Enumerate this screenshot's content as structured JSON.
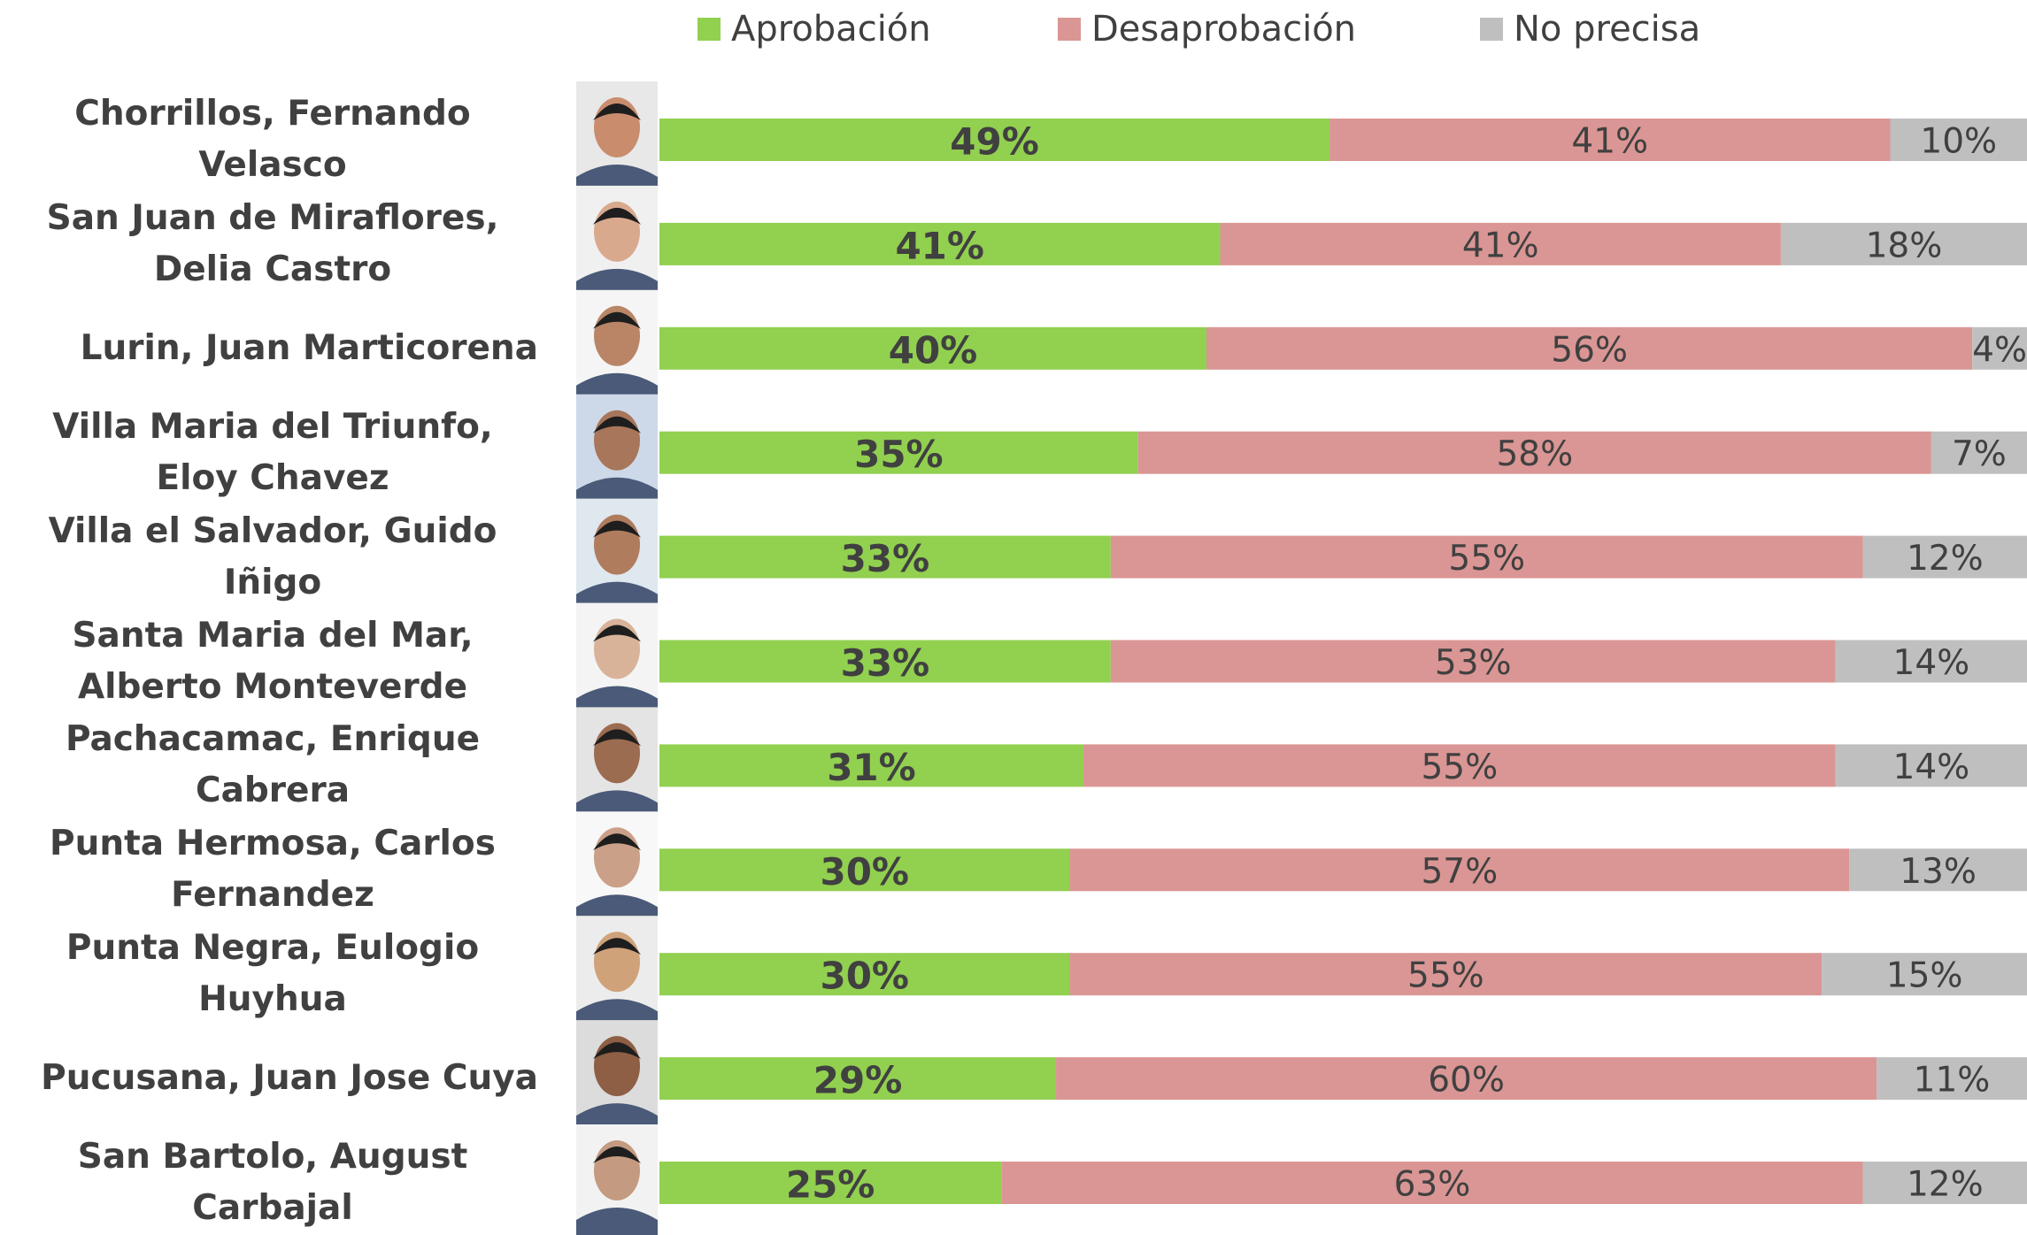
{
  "chart_data": {
    "type": "stacked-bar-horizontal",
    "categories": [
      "Chorrillos, Fernando Velasco",
      "San Juan de Miraflores, Delia Castro",
      "Lurin, Juan Marticorena",
      "Villa Maria del Triunfo, Eloy Chavez",
      "Villa el Salvador, Guido Iñigo",
      "Santa Maria del Mar, Alberto Monteverde",
      "Pachacamac, Enrique Cabrera",
      "Punta Hermosa, Carlos Fernandez",
      "Punta Negra, Eulogio Huyhua",
      "Pucusana, Juan Jose Cuya",
      "San Bartolo, August Carbajal"
    ],
    "series": [
      {
        "name": "Aprobación",
        "color": "#92d050",
        "values": [
          49,
          41,
          40,
          35,
          33,
          33,
          31,
          30,
          30,
          29,
          25
        ],
        "value_labels": [
          "49%",
          "41%",
          "40%",
          "35%",
          "33%",
          "33%",
          "31%",
          "30%",
          "30%",
          "29%",
          "25%"
        ]
      },
      {
        "name": "Desaprobación",
        "color": "#da9694",
        "values": [
          41,
          41,
          56,
          58,
          55,
          53,
          55,
          57,
          55,
          60,
          63
        ],
        "value_labels": [
          "41%",
          "41%",
          "56%",
          "58%",
          "55%",
          "53%",
          "55%",
          "57%",
          "55%",
          "60%",
          "63%"
        ]
      },
      {
        "name": "No precisa",
        "color": "#bfbfbf",
        "values": [
          10,
          18,
          4,
          7,
          12,
          14,
          14,
          13,
          15,
          11,
          12
        ],
        "value_labels": [
          "10%",
          "18%",
          "4%",
          "7%",
          "12%",
          "14%",
          "14%",
          "13%",
          "15%",
          "11%",
          "12%"
        ]
      }
    ]
  }
}
